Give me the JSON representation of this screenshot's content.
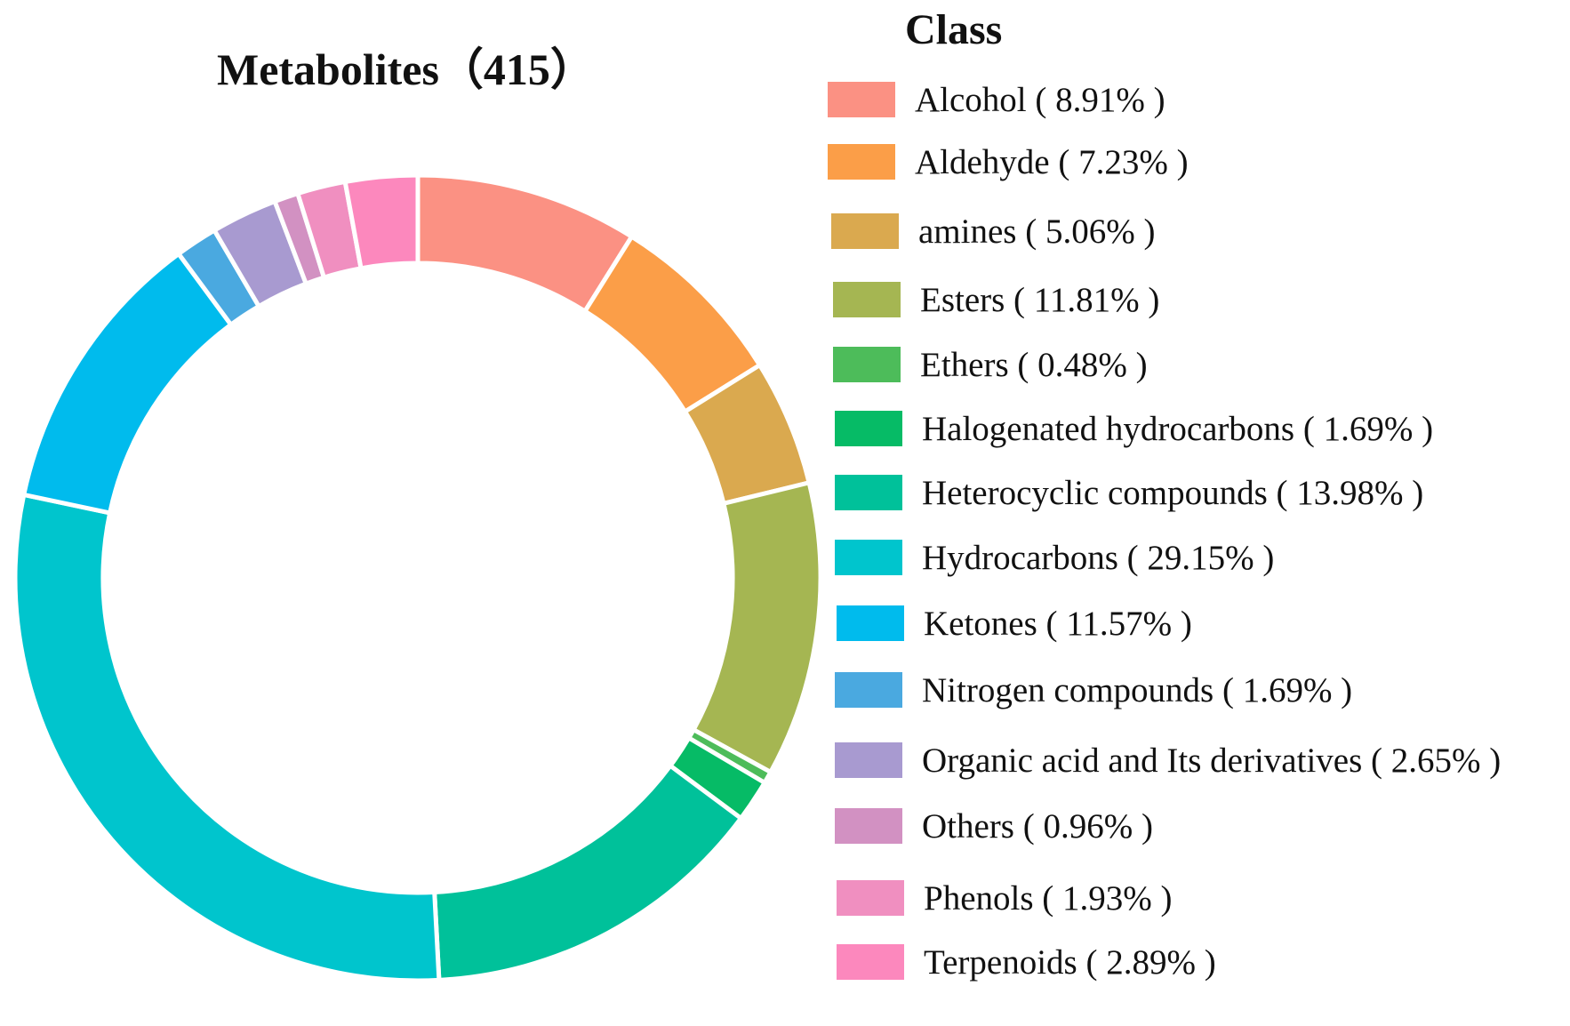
{
  "title": "Metabolites（415）",
  "legend_title": "Class",
  "chart_data": {
    "type": "pie",
    "title": "Metabolites（415）",
    "donut": true,
    "legend_title": "Class",
    "legend_placement": "right",
    "slices": [
      {
        "label": "Alcohol",
        "value": 8.91,
        "text": "Alcohol ( 8.91% )",
        "color": "#fb9183"
      },
      {
        "label": "Aldehyde",
        "value": 7.23,
        "text": "Aldehyde ( 7.23% )",
        "color": "#fb9e48"
      },
      {
        "label": "amines",
        "value": 5.06,
        "text": "amines ( 5.06% )",
        "color": "#daa94f"
      },
      {
        "label": "Esters",
        "value": 11.81,
        "text": "Esters ( 11.81% )",
        "color": "#a5b652"
      },
      {
        "label": "Ethers",
        "value": 0.48,
        "text": "Ethers ( 0.48% )",
        "color": "#4dbc5a"
      },
      {
        "label": "Halogenated hydrocarbons",
        "value": 1.69,
        "text": "Halogenated hydrocarbons ( 1.69% )",
        "color": "#06bb66"
      },
      {
        "label": "Heterocyclic compounds",
        "value": 13.98,
        "text": "Heterocyclic compounds ( 13.98% )",
        "color": "#00c19a"
      },
      {
        "label": "Hydrocarbons",
        "value": 29.15,
        "text": "Hydrocarbons ( 29.15% )",
        "color": "#00c5cd"
      },
      {
        "label": "Ketones",
        "value": 11.57,
        "text": "Ketones ( 11.57% )",
        "color": "#00bbed"
      },
      {
        "label": "Nitrogen compounds",
        "value": 1.69,
        "text": "Nitrogen compounds ( 1.69% )",
        "color": "#4aa9e0"
      },
      {
        "label": "Organic acid and Its derivatives",
        "value": 2.65,
        "text": "Organic acid and Its derivatives ( 2.65% )",
        "color": "#a89ad0"
      },
      {
        "label": "Others",
        "value": 0.96,
        "text": "Others ( 0.96% )",
        "color": "#d291c2"
      },
      {
        "label": "Phenols",
        "value": 1.93,
        "text": "Phenols ( 1.93% )",
        "color": "#f08fc0"
      },
      {
        "label": "Terpenoids",
        "value": 2.89,
        "text": "Terpenoids ( 2.89% )",
        "color": "#fc88bd"
      }
    ]
  }
}
